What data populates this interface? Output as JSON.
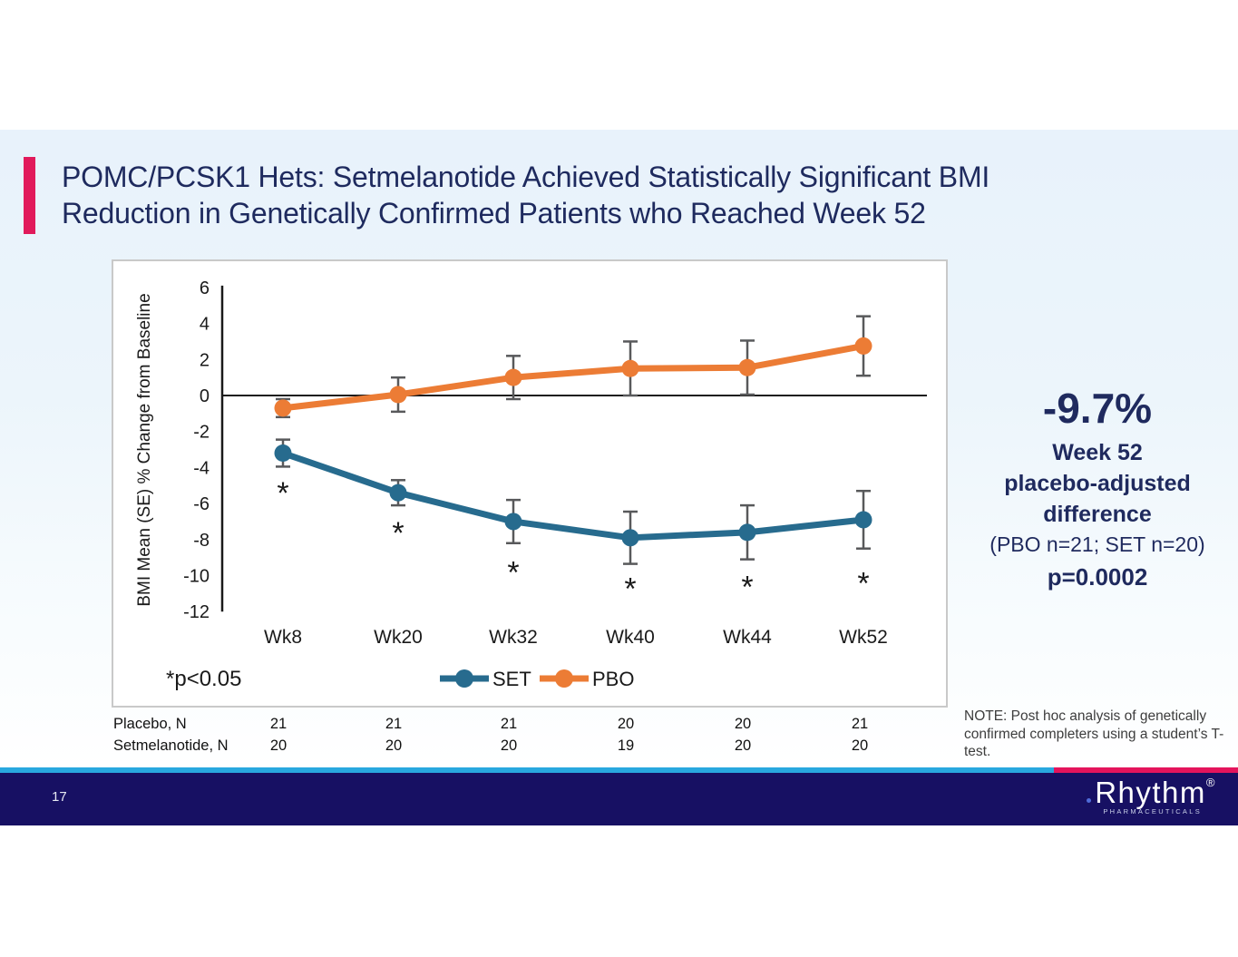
{
  "slide": {
    "title_lines": [
      "POMC/PCSK1 Hets: Setmelanotide Achieved Statistically Significant BMI",
      "Reduction in Genetically Confirmed Patients who Reached Week 52"
    ]
  },
  "chart_data": {
    "type": "line",
    "categories": [
      "Wk8",
      "Wk20",
      "Wk32",
      "Wk40",
      "Wk44",
      "Wk52"
    ],
    "ylabel": "BMI Mean (SE) % Change from Baseline",
    "ylim": [
      -12,
      6
    ],
    "ytick_step": 2,
    "grid": false,
    "legend_position": "bottom",
    "significance_note": "*p<0.05",
    "series": [
      {
        "name": "SET",
        "color": "#276B8E",
        "values": [
          -3.2,
          -5.4,
          -7.0,
          -7.9,
          -7.6,
          -6.9
        ],
        "errors": [
          0.75,
          0.7,
          1.2,
          1.45,
          1.5,
          1.6
        ]
      },
      {
        "name": "PBO",
        "color": "#EC7C35",
        "values": [
          -0.7,
          0.05,
          1.0,
          1.5,
          1.55,
          2.75
        ],
        "errors": [
          0.5,
          0.95,
          1.2,
          1.5,
          1.5,
          1.65
        ]
      }
    ],
    "asterisk_values": [
      -5.4,
      -7.6,
      -9.8,
      -10.7,
      -10.6,
      -10.4
    ]
  },
  "stats": {
    "headline": "-9.7%",
    "line1": "Week 52",
    "line2": "placebo-adjusted",
    "line3": "difference",
    "subline": "(PBO n=21; SET n=20)",
    "pvalue": "p=0.0002"
  },
  "table": {
    "rows": [
      {
        "label": "Placebo, N",
        "values": [
          "21",
          "21",
          "21",
          "20",
          "20",
          "21"
        ]
      },
      {
        "label": "Setmelanotide, N",
        "values": [
          "20",
          "20",
          "20",
          "19",
          "20",
          "20"
        ]
      }
    ]
  },
  "note": {
    "text": "NOTE: Post hoc analysis of genetically confirmed completers using a student’s T-test."
  },
  "footer": {
    "page_number": "17",
    "logo_text": "Rhythm",
    "logo_reg": "®",
    "logo_sub": "PHARMACEUTICALS"
  },
  "colors": {
    "accent_magenta": "#E11A5B",
    "strip_cyan": "#29A8DF",
    "strip_magenta": "#E4145C",
    "footer_navy": "#171063",
    "title_navy": "#1E2A5E",
    "set_teal": "#276B8E",
    "pbo_orange": "#EC7C35"
  }
}
